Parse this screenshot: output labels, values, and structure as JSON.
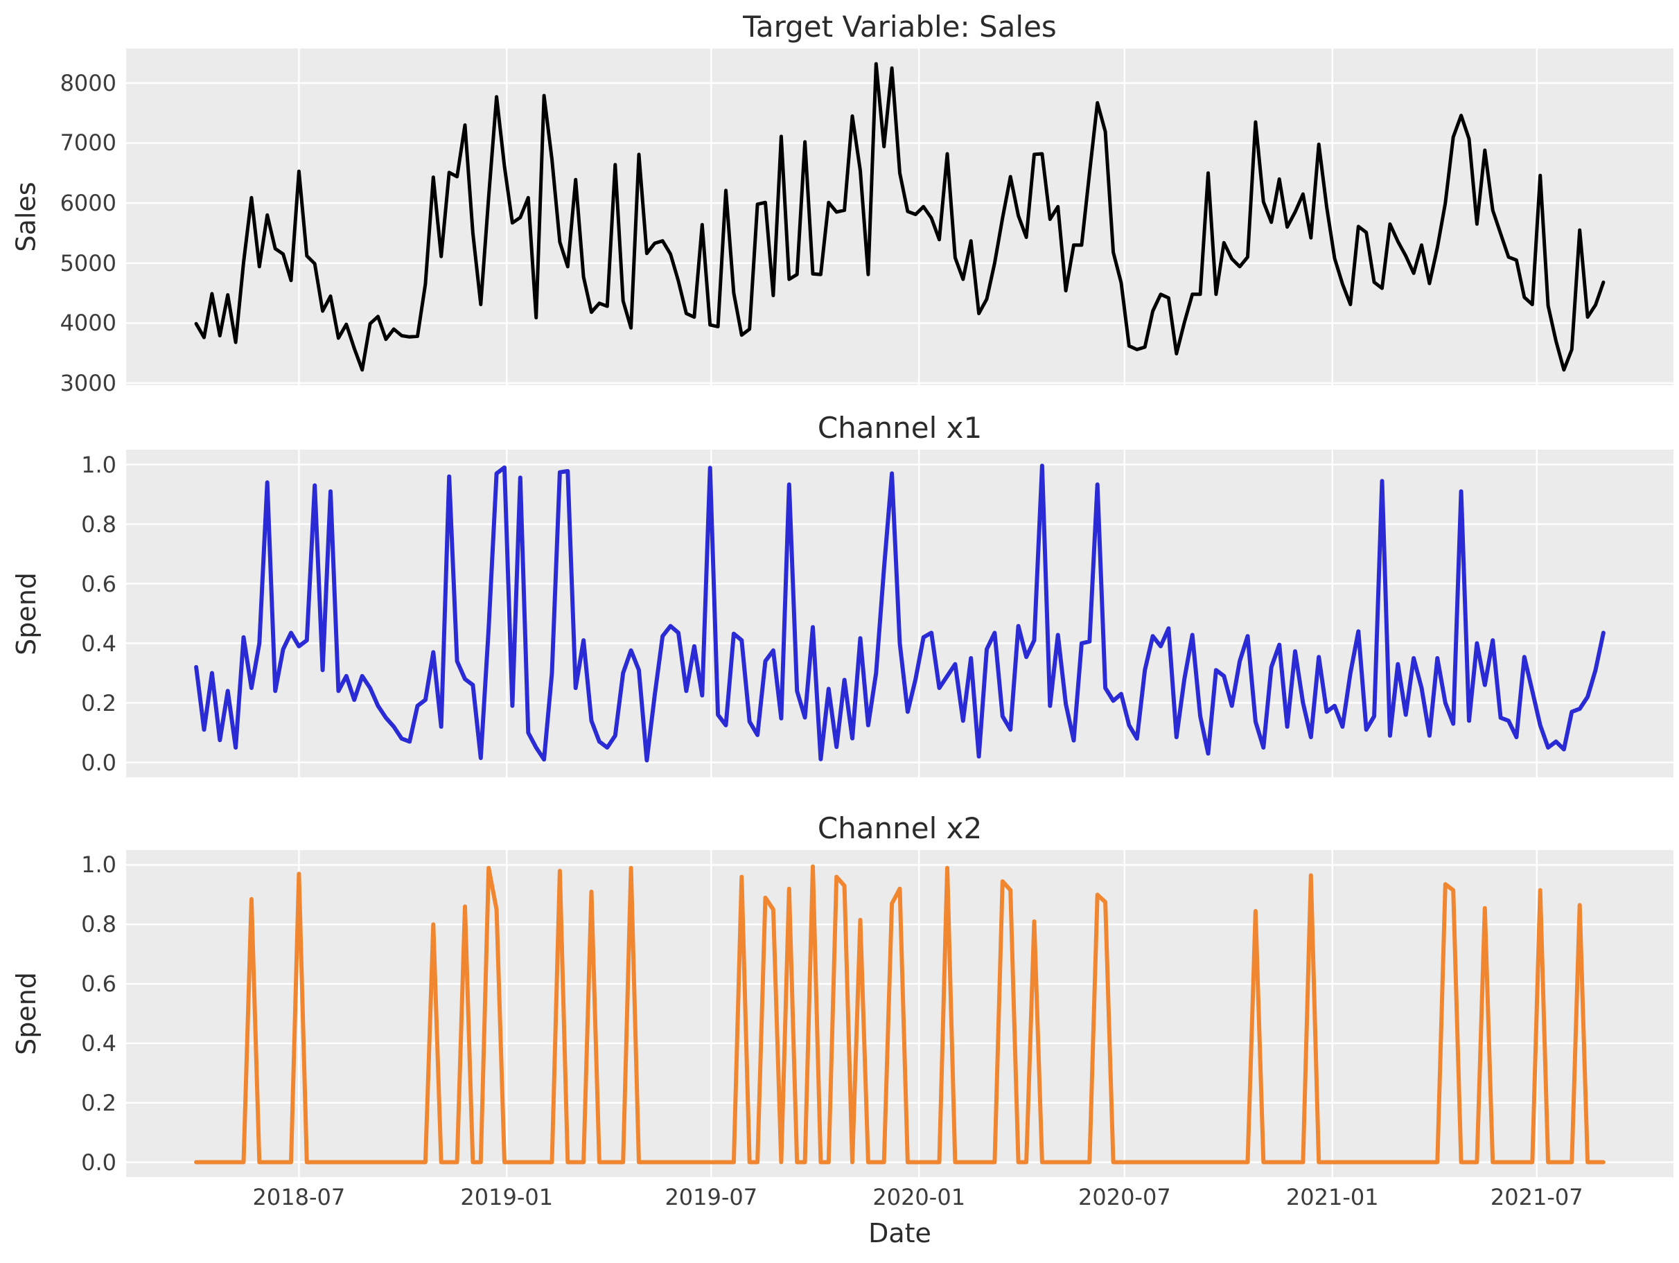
{
  "figure": {
    "background_color": "#ffffff",
    "plot_background_color": "#ebebeb",
    "grid_color": "#ffffff",
    "text_color": "#2b2b2b",
    "tick_color": "#3c3c3c"
  },
  "x_axis": {
    "label": "Date",
    "start_date": "2018-04-01",
    "step_days": 7,
    "n_points": 179,
    "margin_days": 62,
    "span_days": 1246,
    "tick_labels": [
      "2018-07",
      "2019-01",
      "2019-07",
      "2020-01",
      "2020-07",
      "2021-01",
      "2021-07"
    ],
    "tick_day_offsets": [
      91,
      275,
      456,
      640,
      822,
      1006,
      1187
    ]
  },
  "chart_data": [
    {
      "type": "line",
      "title": "Target Variable: Sales",
      "ylabel": "Sales",
      "color": "#000000",
      "linewidth": 5,
      "ylim": [
        2965,
        8575
      ],
      "yticks": [
        3000,
        4000,
        5000,
        6000,
        7000,
        8000
      ],
      "ytick_labels": [
        "3000",
        "4000",
        "5000",
        "6000",
        "7000",
        "8000"
      ],
      "values": [
        3990,
        3760,
        4490,
        3790,
        4470,
        3680,
        5010,
        6090,
        4940,
        5800,
        5240,
        5150,
        4710,
        6530,
        5120,
        4990,
        4200,
        4450,
        3750,
        3980,
        3580,
        3220,
        3990,
        4110,
        3730,
        3900,
        3790,
        3770,
        3780,
        4650,
        6430,
        5110,
        6510,
        6440,
        7300,
        5500,
        4310,
        6100,
        7770,
        6610,
        5670,
        5760,
        6090,
        4090,
        7790,
        6730,
        5350,
        4940,
        6390,
        4770,
        4180,
        4330,
        4280,
        6640,
        4370,
        3920,
        6810,
        5160,
        5330,
        5370,
        5150,
        4700,
        4160,
        4100,
        5640,
        3970,
        3940,
        6210,
        4500,
        3800,
        3900,
        5980,
        6010,
        4460,
        7110,
        4730,
        4810,
        7020,
        4820,
        4810,
        6010,
        5850,
        5880,
        7450,
        6540,
        4810,
        8320,
        6940,
        8250,
        6500,
        5860,
        5810,
        5940,
        5750,
        5390,
        6820,
        5090,
        4730,
        5370,
        4160,
        4400,
        5000,
        5750,
        6440,
        5790,
        5430,
        6810,
        6820,
        5730,
        5940,
        4540,
        5300,
        5300,
        6500,
        7670,
        7190,
        5180,
        4670,
        3620,
        3560,
        3600,
        4200,
        4480,
        4420,
        3490,
        4010,
        4480,
        4480,
        6500,
        4480,
        5340,
        5070,
        4940,
        5100,
        7350,
        6020,
        5680,
        6400,
        5600,
        5850,
        6150,
        5420,
        6980,
        5930,
        5080,
        4650,
        4310,
        5610,
        5510,
        4680,
        4580,
        5650,
        5360,
        5120,
        4830,
        5300,
        4660,
        5260,
        6000,
        7100,
        7460,
        7070,
        5650,
        6880,
        5880,
        5490,
        5100,
        5050,
        4430,
        4310,
        6460,
        4290,
        3700,
        3220,
        3560,
        5550,
        4100,
        4300,
        4680
      ]
    },
    {
      "type": "line",
      "title": "Channel x1",
      "ylabel": "Spend",
      "color": "#2b2bd5",
      "linewidth": 6,
      "ylim": [
        -0.05,
        1.05
      ],
      "yticks": [
        0.0,
        0.2,
        0.4,
        0.6,
        0.8,
        1.0
      ],
      "ytick_labels": [
        "0.0",
        "0.2",
        "0.4",
        "0.6",
        "0.8",
        "1.0"
      ],
      "values": [
        0.32,
        0.11,
        0.3,
        0.075,
        0.24,
        0.05,
        0.42,
        0.25,
        0.4,
        0.94,
        0.24,
        0.38,
        0.435,
        0.39,
        0.41,
        0.93,
        0.31,
        0.91,
        0.24,
        0.29,
        0.21,
        0.29,
        0.25,
        0.19,
        0.15,
        0.12,
        0.08,
        0.07,
        0.19,
        0.21,
        0.37,
        0.12,
        0.96,
        0.34,
        0.28,
        0.26,
        0.015,
        0.45,
        0.97,
        0.99,
        0.19,
        0.956,
        0.1,
        0.05,
        0.01,
        0.3,
        0.974,
        0.978,
        0.25,
        0.41,
        0.14,
        0.07,
        0.05,
        0.09,
        0.3,
        0.376,
        0.31,
        0.007,
        0.225,
        0.424,
        0.458,
        0.435,
        0.24,
        0.39,
        0.225,
        0.989,
        0.16,
        0.125,
        0.432,
        0.41,
        0.137,
        0.092,
        0.34,
        0.376,
        0.148,
        0.933,
        0.24,
        0.151,
        0.454,
        0.011,
        0.247,
        0.052,
        0.277,
        0.081,
        0.417,
        0.125,
        0.3,
        0.65,
        0.97,
        0.4,
        0.17,
        0.28,
        0.42,
        0.435,
        0.25,
        0.29,
        0.33,
        0.14,
        0.35,
        0.02,
        0.38,
        0.435,
        0.155,
        0.11,
        0.458,
        0.354,
        0.41,
        0.996,
        0.19,
        0.428,
        0.196,
        0.074,
        0.4,
        0.406,
        0.933,
        0.25,
        0.207,
        0.23,
        0.125,
        0.08,
        0.31,
        0.424,
        0.39,
        0.45,
        0.085,
        0.28,
        0.428,
        0.155,
        0.03,
        0.31,
        0.29,
        0.19,
        0.34,
        0.424,
        0.137,
        0.05,
        0.32,
        0.395,
        0.12,
        0.373,
        0.2,
        0.085,
        0.354,
        0.17,
        0.19,
        0.12,
        0.3,
        0.44,
        0.11,
        0.155,
        0.945,
        0.09,
        0.33,
        0.16,
        0.35,
        0.25,
        0.09,
        0.35,
        0.2,
        0.13,
        0.91,
        0.14,
        0.4,
        0.26,
        0.41,
        0.15,
        0.14,
        0.085,
        0.354,
        0.24,
        0.125,
        0.05,
        0.07,
        0.044,
        0.17,
        0.18,
        0.22,
        0.31,
        0.435
      ]
    },
    {
      "type": "line",
      "title": "Channel x2",
      "ylabel": "Spend",
      "color": "#f08630",
      "linewidth": 6,
      "ylim": [
        -0.05,
        1.05
      ],
      "yticks": [
        0.0,
        0.2,
        0.4,
        0.6,
        0.8,
        1.0
      ],
      "ytick_labels": [
        "0.0",
        "0.2",
        "0.4",
        "0.6",
        "0.8",
        "1.0"
      ],
      "values": [
        0,
        0,
        0,
        0,
        0,
        0,
        0,
        0.885,
        0,
        0,
        0,
        0,
        0,
        0.97,
        0,
        0,
        0,
        0,
        0,
        0,
        0,
        0,
        0,
        0,
        0,
        0,
        0,
        0,
        0,
        0,
        0.8,
        0,
        0,
        0,
        0.86,
        0,
        0,
        0.99,
        0.85,
        0,
        0,
        0,
        0,
        0,
        0,
        0,
        0.98,
        0,
        0,
        0,
        0.91,
        0,
        0,
        0,
        0,
        0.99,
        0,
        0,
        0,
        0,
        0,
        0,
        0,
        0,
        0,
        0,
        0,
        0,
        0,
        0.96,
        0,
        0,
        0.89,
        0.85,
        0,
        0.92,
        0,
        0,
        0.995,
        0,
        0,
        0.96,
        0.93,
        0,
        0.815,
        0,
        0,
        0,
        0.87,
        0.92,
        0,
        0,
        0,
        0,
        0,
        0.99,
        0,
        0,
        0,
        0,
        0,
        0,
        0.945,
        0.915,
        0,
        0,
        0.81,
        0,
        0,
        0,
        0,
        0,
        0,
        0,
        0.9,
        0.875,
        0,
        0,
        0,
        0,
        0,
        0,
        0,
        0,
        0,
        0,
        0,
        0,
        0,
        0,
        0,
        0,
        0,
        0,
        0.845,
        0,
        0,
        0,
        0,
        0,
        0,
        0.965,
        0,
        0,
        0,
        0,
        0,
        0,
        0,
        0,
        0,
        0,
        0,
        0,
        0,
        0,
        0,
        0,
        0.935,
        0.915,
        0,
        0,
        0,
        0.855,
        0,
        0,
        0,
        0,
        0,
        0,
        0.915,
        0,
        0,
        0,
        0,
        0.865,
        0,
        0,
        0
      ]
    }
  ]
}
